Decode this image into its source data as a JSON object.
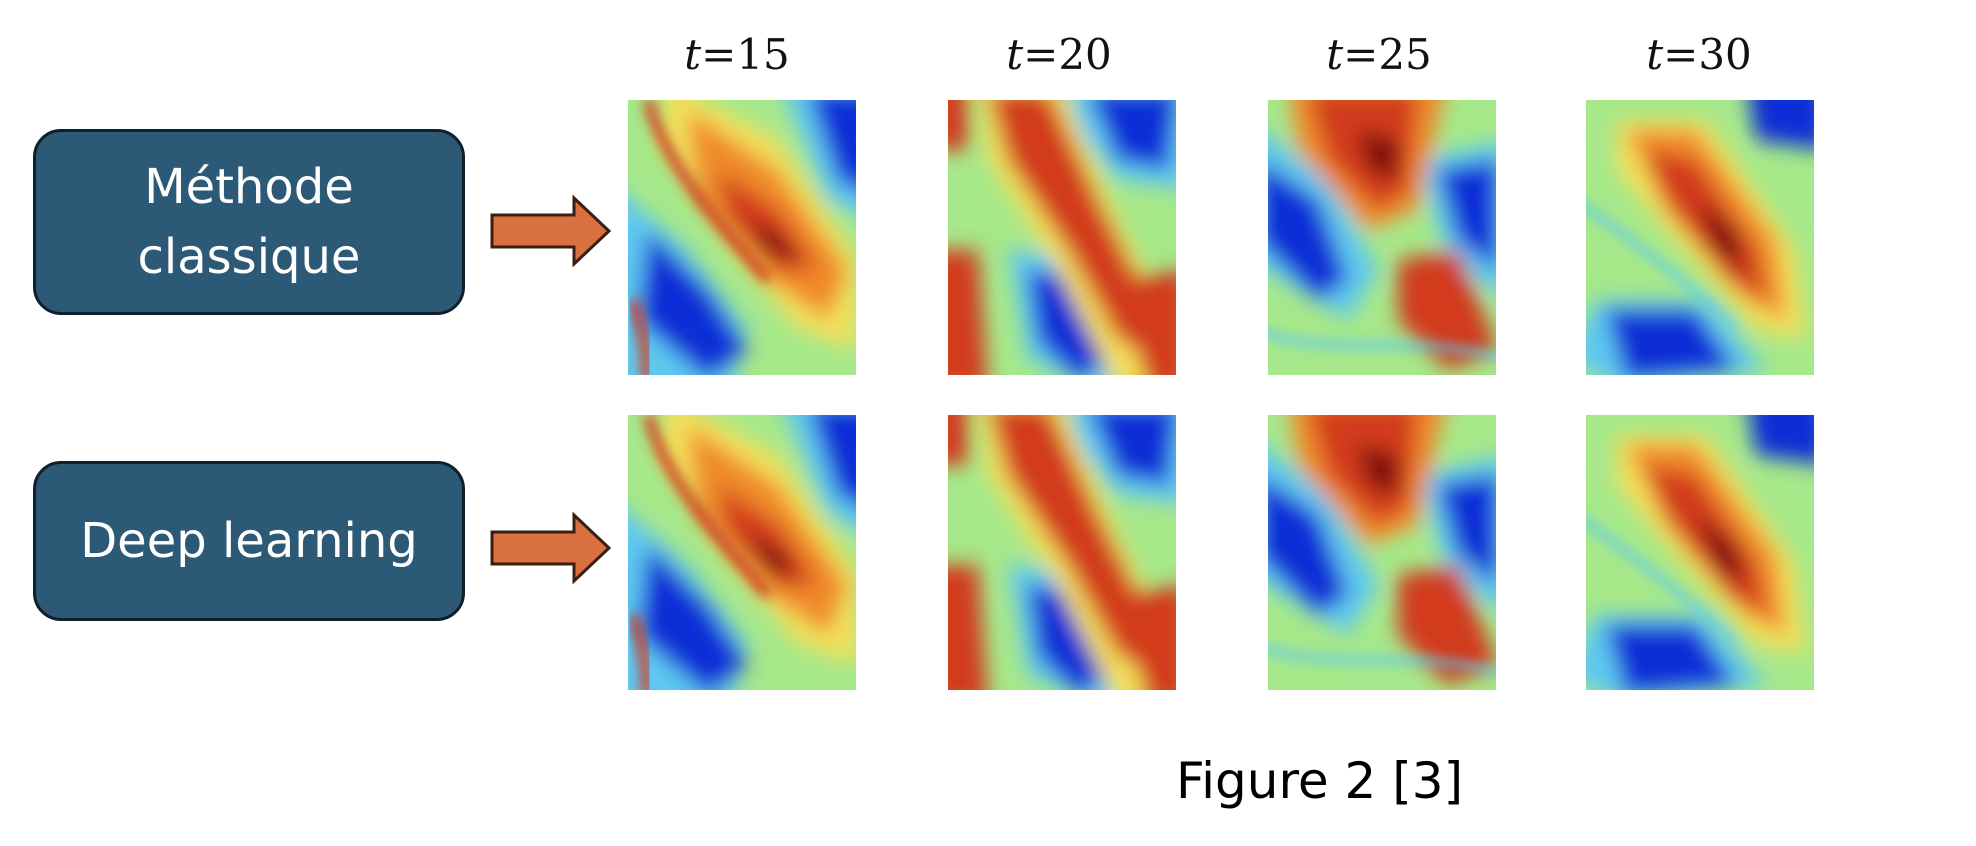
{
  "methods": {
    "classic": {
      "line1": "Méthode",
      "line2": "classique"
    },
    "deep_learning": {
      "label": "Deep learning"
    }
  },
  "times": [
    {
      "var": "t",
      "value": "=15"
    },
    {
      "var": "t",
      "value": "=20"
    },
    {
      "var": "t",
      "value": "=25"
    },
    {
      "var": "t",
      "value": "=30"
    }
  ],
  "caption": "Figure 2 [3]",
  "colors": {
    "box_fill": "#2c5a76",
    "box_border": "#0f1f2b",
    "arrow_fill": "#d9703f",
    "arrow_stroke": "#3a1f10",
    "field_background": "#a6e88a",
    "deep_blue": "#0a2fd6",
    "light_blue": "#5fc8f0",
    "yellow": "#f3e05a",
    "orange": "#f08a2a",
    "red": "#d23a1c",
    "dark_red": "#7a0f0a"
  }
}
